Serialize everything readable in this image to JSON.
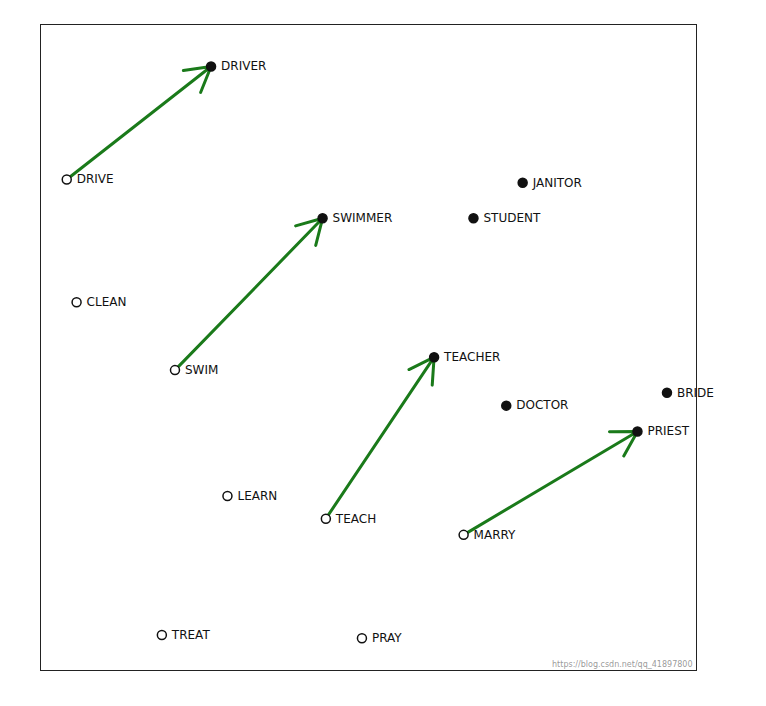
{
  "chart_data": {
    "type": "scatter",
    "xlim": [
      0,
      10
    ],
    "ylim": [
      0,
      10
    ],
    "tick_labels": false,
    "grid": false,
    "series": [
      {
        "marker": "filled",
        "color": "#111111",
        "x": [
          2.6,
          4.3,
          6.0,
          9.55,
          9.1,
          7.1,
          7.35,
          6.6
        ],
        "y": [
          9.35,
          7.0,
          4.85,
          4.3,
          3.7,
          4.1,
          7.55,
          7.0
        ],
        "labels": [
          "DRIVER",
          "SWIMMER",
          "TEACHER",
          "BRIDE",
          "PRIEST",
          "DOCTOR",
          "JANITOR",
          "STUDENT"
        ]
      },
      {
        "marker": "open",
        "color": "#111111",
        "x": [
          0.4,
          2.05,
          0.55,
          4.35,
          2.85,
          6.45,
          1.85,
          4.9
        ],
        "y": [
          7.6,
          4.65,
          5.7,
          2.35,
          2.7,
          2.1,
          0.55,
          0.5
        ],
        "labels": [
          "DRIVE",
          "SWIM",
          "CLEAN",
          "TEACH",
          "LEARN",
          "MARRY",
          "TREAT",
          "PRAY"
        ]
      }
    ],
    "arrows": {
      "color": "#1a7a1a",
      "x_start": [
        0.4,
        2.05,
        4.35,
        6.45
      ],
      "y_start": [
        7.6,
        4.65,
        2.35,
        2.1
      ],
      "x_end": [
        2.6,
        4.3,
        6.0,
        9.1
      ],
      "y_end": [
        9.35,
        7.0,
        4.85,
        3.7
      ]
    },
    "annotations": [
      "https://blog.csdn.net/qq_41897800"
    ]
  }
}
